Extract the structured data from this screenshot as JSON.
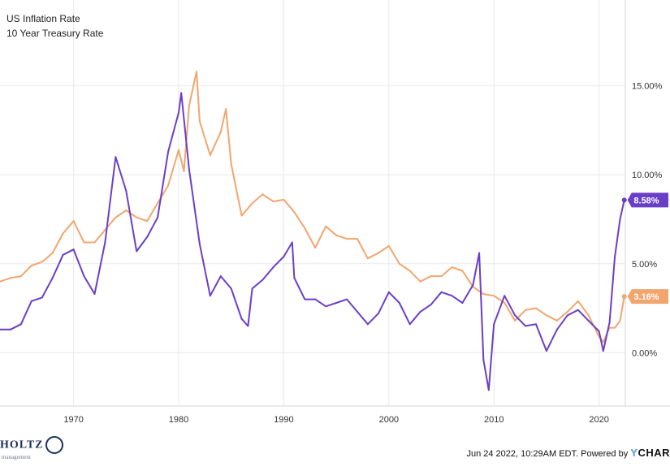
{
  "legend": {
    "series1": "US Inflation Rate",
    "series2": "10 Year Treasury Rate"
  },
  "footer": {
    "logo_text": "HOLTZ",
    "logo_sub": "management",
    "credit": "Jun 24 2022, 10:29AM EDT. Powered by",
    "brand_y": "Y",
    "brand_rest": "CHAR"
  },
  "colors": {
    "inflation": "#6a3fc8",
    "treasury": "#f3a56e",
    "grid": "#e9e9e9",
    "axis_text": "#333333"
  },
  "chart_data": {
    "type": "line",
    "xlim": [
      1963.0,
      2022.5
    ],
    "ylim": [
      -3.0,
      18.0
    ],
    "x_ticks": [
      1970,
      1980,
      1990,
      2000,
      2010,
      2020
    ],
    "y_ticks": [
      0,
      5,
      10,
      15
    ],
    "y_tick_labels": [
      "0.00%",
      "5.00%",
      "10.00%",
      "15.00%"
    ],
    "grid": "on",
    "series": [
      {
        "name": "US Inflation Rate",
        "color": "#6a3fc8",
        "end_label": "8.58%",
        "points": [
          [
            1963.0,
            1.3
          ],
          [
            1964.0,
            1.3
          ],
          [
            1965.0,
            1.6
          ],
          [
            1966.0,
            2.9
          ],
          [
            1967.0,
            3.1
          ],
          [
            1968.0,
            4.2
          ],
          [
            1969.0,
            5.5
          ],
          [
            1970.0,
            5.8
          ],
          [
            1971.0,
            4.3
          ],
          [
            1972.0,
            3.3
          ],
          [
            1973.0,
            6.2
          ],
          [
            1974.0,
            11.0
          ],
          [
            1975.0,
            9.1
          ],
          [
            1976.0,
            5.7
          ],
          [
            1977.0,
            6.5
          ],
          [
            1978.0,
            7.6
          ],
          [
            1979.0,
            11.3
          ],
          [
            1980.0,
            13.5
          ],
          [
            1980.25,
            14.6
          ],
          [
            1981.0,
            10.3
          ],
          [
            1982.0,
            6.1
          ],
          [
            1983.0,
            3.2
          ],
          [
            1984.0,
            4.3
          ],
          [
            1985.0,
            3.6
          ],
          [
            1986.0,
            1.9
          ],
          [
            1986.6,
            1.5
          ],
          [
            1987.0,
            3.6
          ],
          [
            1988.0,
            4.1
          ],
          [
            1989.0,
            4.8
          ],
          [
            1990.0,
            5.4
          ],
          [
            1990.8,
            6.2
          ],
          [
            1991.0,
            4.2
          ],
          [
            1992.0,
            3.0
          ],
          [
            1993.0,
            3.0
          ],
          [
            1994.0,
            2.6
          ],
          [
            1995.0,
            2.8
          ],
          [
            1996.0,
            3.0
          ],
          [
            1997.0,
            2.3
          ],
          [
            1998.0,
            1.6
          ],
          [
            1999.0,
            2.2
          ],
          [
            2000.0,
            3.4
          ],
          [
            2001.0,
            2.8
          ],
          [
            2002.0,
            1.6
          ],
          [
            2003.0,
            2.3
          ],
          [
            2004.0,
            2.7
          ],
          [
            2005.0,
            3.4
          ],
          [
            2006.0,
            3.2
          ],
          [
            2007.0,
            2.8
          ],
          [
            2008.0,
            3.8
          ],
          [
            2008.6,
            5.6
          ],
          [
            2009.0,
            -0.4
          ],
          [
            2009.5,
            -2.1
          ],
          [
            2010.0,
            1.6
          ],
          [
            2011.0,
            3.2
          ],
          [
            2012.0,
            2.1
          ],
          [
            2013.0,
            1.5
          ],
          [
            2014.0,
            1.6
          ],
          [
            2015.0,
            0.1
          ],
          [
            2016.0,
            1.3
          ],
          [
            2017.0,
            2.1
          ],
          [
            2018.0,
            2.4
          ],
          [
            2019.0,
            1.8
          ],
          [
            2020.0,
            1.2
          ],
          [
            2020.4,
            0.1
          ],
          [
            2021.0,
            1.7
          ],
          [
            2021.5,
            5.4
          ],
          [
            2022.0,
            7.5
          ],
          [
            2022.4,
            8.58
          ]
        ]
      },
      {
        "name": "10 Year Treasury Rate",
        "color": "#f3a56e",
        "end_label": "3.16%",
        "points": [
          [
            1963.0,
            4.0
          ],
          [
            1964.0,
            4.2
          ],
          [
            1965.0,
            4.3
          ],
          [
            1966.0,
            4.9
          ],
          [
            1967.0,
            5.1
          ],
          [
            1968.0,
            5.6
          ],
          [
            1969.0,
            6.7
          ],
          [
            1970.0,
            7.4
          ],
          [
            1971.0,
            6.2
          ],
          [
            1972.0,
            6.2
          ],
          [
            1973.0,
            6.9
          ],
          [
            1974.0,
            7.6
          ],
          [
            1975.0,
            8.0
          ],
          [
            1976.0,
            7.6
          ],
          [
            1977.0,
            7.4
          ],
          [
            1978.0,
            8.4
          ],
          [
            1979.0,
            9.4
          ],
          [
            1980.0,
            11.4
          ],
          [
            1980.5,
            10.2
          ],
          [
            1981.0,
            13.9
          ],
          [
            1981.7,
            15.8
          ],
          [
            1982.0,
            13.0
          ],
          [
            1983.0,
            11.1
          ],
          [
            1984.0,
            12.4
          ],
          [
            1984.5,
            13.7
          ],
          [
            1985.0,
            10.6
          ],
          [
            1986.0,
            7.7
          ],
          [
            1987.0,
            8.4
          ],
          [
            1988.0,
            8.9
          ],
          [
            1989.0,
            8.5
          ],
          [
            1990.0,
            8.6
          ],
          [
            1991.0,
            7.9
          ],
          [
            1992.0,
            7.0
          ],
          [
            1993.0,
            5.9
          ],
          [
            1994.0,
            7.1
          ],
          [
            1995.0,
            6.6
          ],
          [
            1996.0,
            6.4
          ],
          [
            1997.0,
            6.4
          ],
          [
            1998.0,
            5.3
          ],
          [
            1999.0,
            5.6
          ],
          [
            2000.0,
            6.0
          ],
          [
            2001.0,
            5.0
          ],
          [
            2002.0,
            4.6
          ],
          [
            2003.0,
            4.0
          ],
          [
            2004.0,
            4.3
          ],
          [
            2005.0,
            4.3
          ],
          [
            2006.0,
            4.8
          ],
          [
            2007.0,
            4.6
          ],
          [
            2008.0,
            3.7
          ],
          [
            2009.0,
            3.3
          ],
          [
            2010.0,
            3.2
          ],
          [
            2011.0,
            2.8
          ],
          [
            2012.0,
            1.8
          ],
          [
            2013.0,
            2.4
          ],
          [
            2014.0,
            2.5
          ],
          [
            2015.0,
            2.1
          ],
          [
            2016.0,
            1.8
          ],
          [
            2017.0,
            2.3
          ],
          [
            2018.0,
            2.9
          ],
          [
            2019.0,
            2.1
          ],
          [
            2020.0,
            0.9
          ],
          [
            2020.4,
            0.6
          ],
          [
            2021.0,
            1.4
          ],
          [
            2021.5,
            1.4
          ],
          [
            2022.0,
            1.8
          ],
          [
            2022.4,
            3.16
          ]
        ]
      }
    ]
  }
}
